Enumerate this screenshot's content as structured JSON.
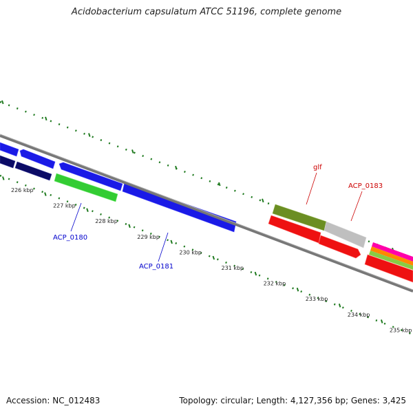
{
  "title": "Acidobacterium capsulatum ATCC 51196, complete genome",
  "footer": {
    "accession": "Accession: NC_012483",
    "summary": "Topology: circular; Length: 4,127,356 bp; Genes: 3,425"
  },
  "colors": {
    "forward_blue": "#1a1ae6",
    "dark_navy": "#0b0b66",
    "green": "#33cc33",
    "olive": "#6b8e23",
    "grey_gene": "#bfbfbf",
    "red": "#ee1111",
    "backbone": "#777777",
    "ticks": "#1f7a1f",
    "label_blue": "#0000cc",
    "label_red": "#cc0000"
  },
  "scale": {
    "tick_labels": [
      "226 kbp",
      "227 kbp",
      "228 kbp",
      "229 kbp",
      "230 kbp",
      "231 kbp",
      "232 kbp",
      "233 kbp",
      "234 kbp",
      "235 kbp"
    ]
  },
  "genes": {
    "labeled": [
      {
        "id": "ACP_0180",
        "color": "label_blue"
      },
      {
        "id": "ACP_0181",
        "color": "label_blue"
      },
      {
        "id": "glf",
        "color": "label_red"
      },
      {
        "id": "ACP_0183",
        "color": "label_red"
      }
    ]
  }
}
